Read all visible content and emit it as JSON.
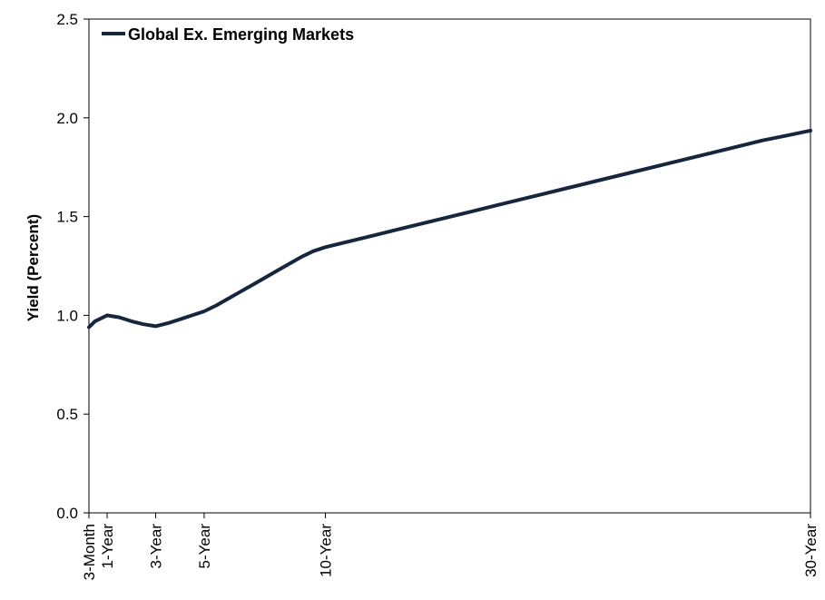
{
  "chart_data": {
    "type": "line",
    "ylabel": "Yield (Percent)",
    "ylim": [
      0,
      2.5
    ],
    "yticks": [
      "0.0",
      "0.5",
      "1.0",
      "1.5",
      "2.0",
      "2.5"
    ],
    "x_unit": "years to maturity",
    "xlim": [
      0.25,
      30
    ],
    "xticks": [
      {
        "x": 0.25,
        "label": "3-Month"
      },
      {
        "x": 1,
        "label": "1-Year"
      },
      {
        "x": 3,
        "label": "3-Year"
      },
      {
        "x": 5,
        "label": "5-Year"
      },
      {
        "x": 10,
        "label": "10-Year"
      },
      {
        "x": 30,
        "label": "30-Year"
      }
    ],
    "grid": false,
    "legend_position": "top-left",
    "series": [
      {
        "name": "Global Ex. Emerging Markets",
        "color": "#17263f",
        "x": [
          0.25,
          0.5,
          0.75,
          1,
          1.5,
          2,
          2.5,
          3,
          3.5,
          4,
          4.5,
          5,
          5.5,
          6,
          6.5,
          7,
          7.5,
          8,
          8.5,
          9,
          9.5,
          10,
          11,
          12,
          13,
          14,
          15,
          16,
          17,
          18,
          19,
          20,
          21,
          22,
          23,
          24,
          25,
          26,
          27,
          28,
          29,
          30
        ],
        "y": [
          0.94,
          0.97,
          0.985,
          1.0,
          0.99,
          0.97,
          0.955,
          0.945,
          0.96,
          0.98,
          1.0,
          1.02,
          1.05,
          1.085,
          1.12,
          1.155,
          1.19,
          1.225,
          1.26,
          1.295,
          1.325,
          1.345,
          1.375,
          1.405,
          1.435,
          1.465,
          1.495,
          1.525,
          1.555,
          1.585,
          1.615,
          1.645,
          1.675,
          1.705,
          1.735,
          1.765,
          1.795,
          1.825,
          1.855,
          1.885,
          1.91,
          1.935
        ]
      }
    ]
  }
}
